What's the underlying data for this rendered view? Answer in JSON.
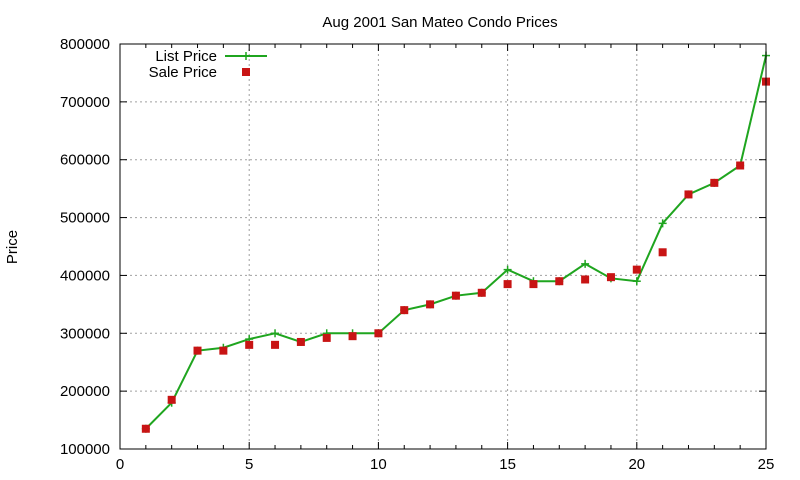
{
  "chart_data": {
    "type": "line",
    "title": "Aug 2001 San Mateo Condo Prices",
    "xlabel": "",
    "ylabel": "Price",
    "xlim": [
      0,
      25
    ],
    "ylim": [
      100000,
      800000
    ],
    "xticks": [
      0,
      5,
      10,
      15,
      20,
      25
    ],
    "yticks": [
      100000,
      200000,
      300000,
      400000,
      500000,
      600000,
      700000,
      800000
    ],
    "grid": true,
    "legend_position": "top-left",
    "x": [
      1,
      2,
      3,
      4,
      5,
      6,
      7,
      8,
      9,
      10,
      11,
      12,
      13,
      14,
      15,
      16,
      17,
      18,
      19,
      20,
      21,
      22,
      23,
      24,
      25
    ],
    "series": [
      {
        "name": "List Price",
        "style": "line+cross",
        "color": "#1fa51f",
        "values": [
          135000,
          180000,
          270000,
          275000,
          290000,
          300000,
          285000,
          300000,
          300000,
          300000,
          340000,
          350000,
          365000,
          370000,
          410000,
          390000,
          390000,
          420000,
          395000,
          390000,
          490000,
          540000,
          560000,
          590000,
          780000
        ]
      },
      {
        "name": "Sale Price",
        "style": "square-points",
        "color": "#c81414",
        "values": [
          135000,
          185000,
          270000,
          270000,
          280000,
          280000,
          285000,
          292000,
          295000,
          300000,
          340000,
          350000,
          365000,
          370000,
          385000,
          385000,
          390000,
          393000,
          397000,
          410000,
          440000,
          540000,
          560000,
          590000,
          735000
        ]
      }
    ]
  }
}
